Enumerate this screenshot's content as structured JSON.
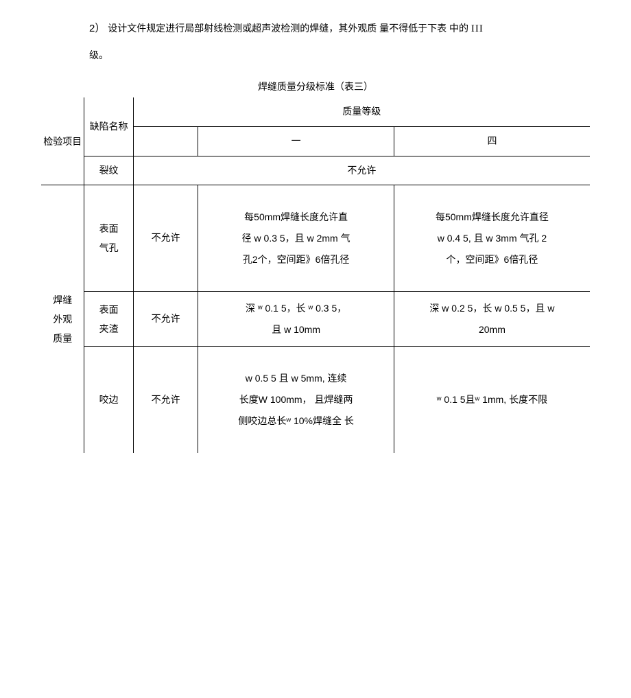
{
  "intro": {
    "num": "2）",
    "text1": "设计文件规定进行局部射线检测或超声波检测的焊缝，其外观质 量不得低于下表 中的 ",
    "roman": "III",
    "text2": "级。"
  },
  "caption": "焊缝质量分级标准（表三）",
  "labels": {
    "inspection_item": "检验项目",
    "defect_name": "缺陷名称",
    "quality_grade": "质量等级",
    "col2": "一",
    "col4": "四",
    "crack": "裂纹",
    "not_allowed": "不允许",
    "weld_appearance": "焊缝外观质量",
    "surface_pore": "表面气孔",
    "surface_slag": "表面夹渣",
    "undercut": "咬边"
  },
  "cells": {
    "pore_col1": "不允许",
    "pore_col2_a": "每50mm焊缝长度允许直",
    "pore_col2_b": "径 w 0.3 5，且 w 2mm 气",
    "pore_col2_c": "孔2个，空间距》6倍孔径",
    "pore_col3_a": "每50mm焊缝长度允许直径",
    "pore_col3_b": "w 0.4 5, 且 w 3mm 气孔 2",
    "pore_col3_c": "个，空间距》6倍孔径",
    "slag_col1": "不允许",
    "slag_col2_a": "深 ʷ 0.1 5，长 ʷ 0.3 5，",
    "slag_col2_b": "且 w 10mm",
    "slag_col3_a": "深 w 0.2 5，长 w 0.5 5，且 w",
    "slag_col3_b": "20mm",
    "undercut_col1": "不允许",
    "undercut_col2_a": "w 0.5 5 且 w 5mm, 连续",
    "undercut_col2_b": "长度W 100mm， 且焊缝两",
    "undercut_col2_c": "侧咬边总长ʷ 10%焊缝全 长",
    "undercut_col3": "ʷ 0.1 5且ʷ 1mm, 长度不限"
  }
}
